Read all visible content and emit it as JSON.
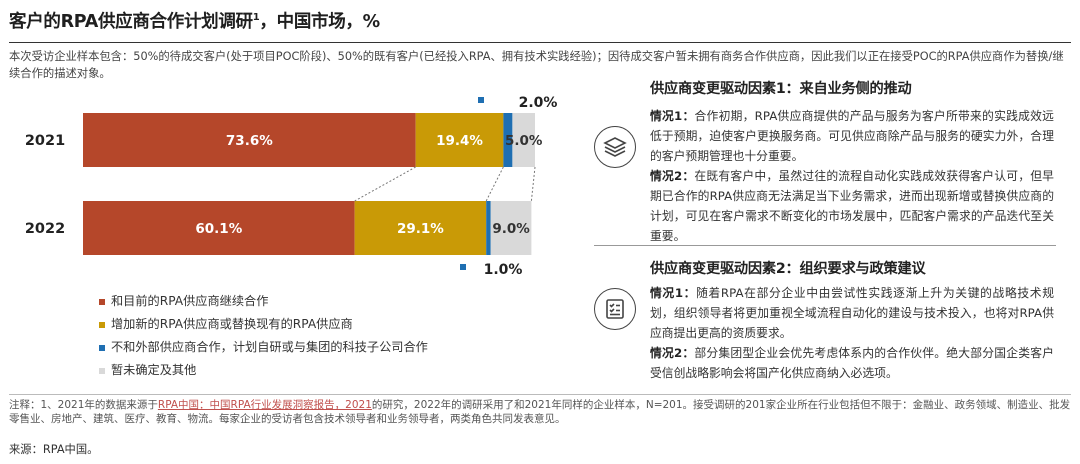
{
  "title": {
    "text": "客户的RPA供应商合作计划调研",
    "sup": "1",
    "suffix": "，中国市场，%"
  },
  "intro": "本次受访企业样本包含：50%的待成交客户(处于项目POC阶段)、50%的既有客户(已经投入RPA、拥有技术实践经验)；因待成交客户暂未拥有商务合作供应商，因此我们以正在接受POC的RPA供应商作为替换/继续合作的描述对象。",
  "colors": {
    "continue": "#b5472a",
    "replace": "#c99a06",
    "own": "#1f6fb2",
    "undecided": "#d9d9d9"
  },
  "chart_data": {
    "type": "bar",
    "orientation": "horizontal",
    "stacked": true,
    "categories": [
      "2021",
      "2022"
    ],
    "series": [
      {
        "name": "和目前的RPA供应商继续合作",
        "values": [
          73.6,
          60.1
        ],
        "labels": [
          "73.6%",
          "60.1%"
        ]
      },
      {
        "name": "增加新的RPA供应商或替换现有的RPA供应商",
        "values": [
          19.4,
          29.1
        ],
        "labels": [
          "19.4%",
          "29.1%"
        ]
      },
      {
        "name": "不和外部供应商合作，计划自研或与集团的科技子公司合作",
        "values": [
          2.0,
          1.0
        ],
        "labels": [
          "2.0%",
          "1.0%"
        ]
      },
      {
        "name": "暂未确定及其他",
        "values": [
          5.0,
          9.0
        ],
        "labels": [
          "5.0%",
          "9.0%"
        ]
      }
    ],
    "xlim": [
      0,
      100
    ],
    "legend_position": "bottom-left"
  },
  "legend": [
    "和目前的RPA供应商继续合作",
    "增加新的RPA供应商或替换现有的RPA供应商",
    "不和外部供应商合作，计划自研或与集团的科技子公司合作",
    "暂未确定及其他"
  ],
  "driver1": {
    "title": "供应商变更驱动因素1：来自业务侧的推动",
    "icon": "data-stack-icon",
    "case1_label": "情况1：",
    "case1_text": "合作初期，RPA供应商提供的产品与服务为客户所带来的实践成效远低于预期，迫使客户更换服务商。可见供应商除产品与服务的硬实力外，合理的客户预期管理也十分重要。",
    "case2_label": "情况2：",
    "case2_text": "在既有客户中，虽然过往的流程自动化实践成效获得客户认可，但早期已合作的RPA供应商无法满足当下业务需求，进而出现新增或替换供应商的计划，可见在客户需求不断变化的市场发展中，匹配客户需求的产品迭代至关重要。"
  },
  "driver2": {
    "title": "供应商变更驱动因素2：组织要求与政策建议",
    "icon": "checklist-icon",
    "case1_label": "情况1：",
    "case1_text": "随着RPA在部分企业中由尝试性实践逐渐上升为关键的战略技术规划，组织领导者将更加重视全域流程自动化的建设与技术投入，也将对RPA供应商提出更高的资质要求。",
    "case2_label": "情况2：",
    "case2_text": "部分集团型企业会优先考虑体系内的合作伙伴。绝大部分国企类客户受信创战略影响会将国产化供应商纳入必选项。"
  },
  "notes": {
    "prefix": "注释：1、2021年的数据来源于",
    "link": "RPA中国：中国RPA行业发展洞察报告，2021",
    "suffix": "的研究，2022年的调研采用了和2021年同样的企业样本，N=201。接受调研的201家企业所在行业包括但不限于：金融业、政务领域、制造业、批发零售业、房地产、建筑、医疗、教育、物流。每家企业的受访者包含技术领导者和业务领导者，两类角色共同发表意见。"
  },
  "source": "来源：RPA中国。"
}
